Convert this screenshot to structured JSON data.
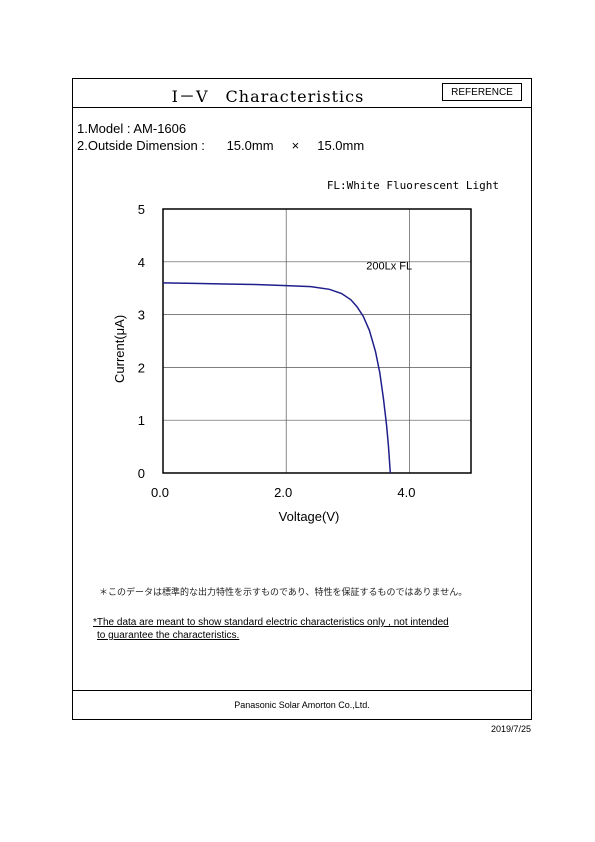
{
  "header": {
    "title": "I－V　Characteristics",
    "badge": "REFERENCE"
  },
  "specs": {
    "model": "1.Model : AM-1606",
    "dimension": "2.Outside Dimension :      15.0mm     ×     15.0mm"
  },
  "legend_note": "FL:White Fluorescent Light",
  "chart_data": {
    "type": "line",
    "xlabel": "Voltage(V)",
    "ylabel": "Current(μA)",
    "xlim": [
      0,
      5
    ],
    "ylim": [
      0,
      5
    ],
    "x_ticks": [
      "0.0",
      "2.0",
      "4.0"
    ],
    "x_tick_values": [
      0,
      2,
      4
    ],
    "y_ticks": [
      "0",
      "1",
      "2",
      "3",
      "4",
      "5"
    ],
    "y_tick_values": [
      0,
      1,
      2,
      3,
      4,
      5
    ],
    "grid": true,
    "series": [
      {
        "name": "200Lx FL",
        "color": "#1f1f8c",
        "x": [
          0,
          0.5,
          1.0,
          1.5,
          2.0,
          2.4,
          2.7,
          2.9,
          3.05,
          3.15,
          3.25,
          3.35,
          3.45,
          3.52,
          3.58,
          3.63,
          3.66,
          3.69
        ],
        "y": [
          3.6,
          3.59,
          3.58,
          3.57,
          3.55,
          3.53,
          3.48,
          3.4,
          3.28,
          3.15,
          2.97,
          2.7,
          2.3,
          1.9,
          1.4,
          0.9,
          0.5,
          0
        ]
      }
    ]
  },
  "notes": {
    "japanese": "＊このデータは標準的な出力特性を示すものであり、特性を保証するものではありません。",
    "english_line1": "*The data are meant to show standard electric characteristics only , not  intended",
    "english_line2": "to guarantee the characteristics."
  },
  "footer": {
    "company": "Panasonic Solar  Amorton Co.,Ltd."
  },
  "date": "2019/7/25"
}
